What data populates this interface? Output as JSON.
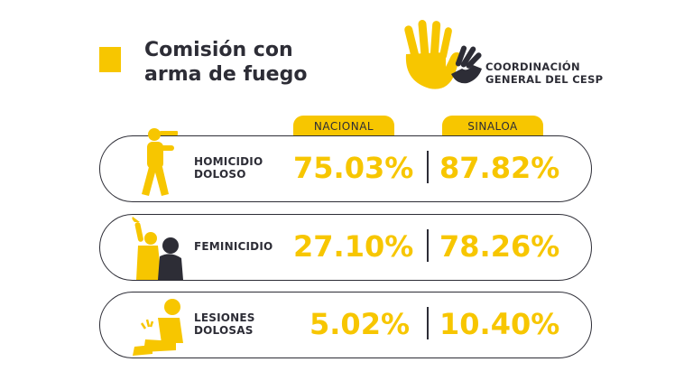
{
  "header": {
    "title_line1": "Comisión con",
    "title_line2": "arma de fuego",
    "accent_color": "#F7C600"
  },
  "logo": {
    "line1": "COORDINACIÓN",
    "line2": "GENERAL DEL CESP",
    "icon": "two-hands-icon"
  },
  "columns": {
    "nacional": "NACIONAL",
    "sinaloa": "SINALOA"
  },
  "rows": [
    {
      "icon": "shooter-icon",
      "label_line1": "HOMICIDIO",
      "label_line2": "DOLOSO",
      "nacional": "75.03%",
      "sinaloa": "87.82%"
    },
    {
      "icon": "attacker-victim-icon",
      "label_line1": "FEMINICIDIO",
      "label_line2": "",
      "nacional": "27.10%",
      "sinaloa": "78.26%"
    },
    {
      "icon": "injured-person-icon",
      "label_line1": "LESIONES",
      "label_line2": "DOLOSAS",
      "nacional": "5.02%",
      "sinaloa": "10.40%"
    }
  ],
  "colors": {
    "yellow": "#F7C600",
    "dark": "#2d2d36"
  }
}
